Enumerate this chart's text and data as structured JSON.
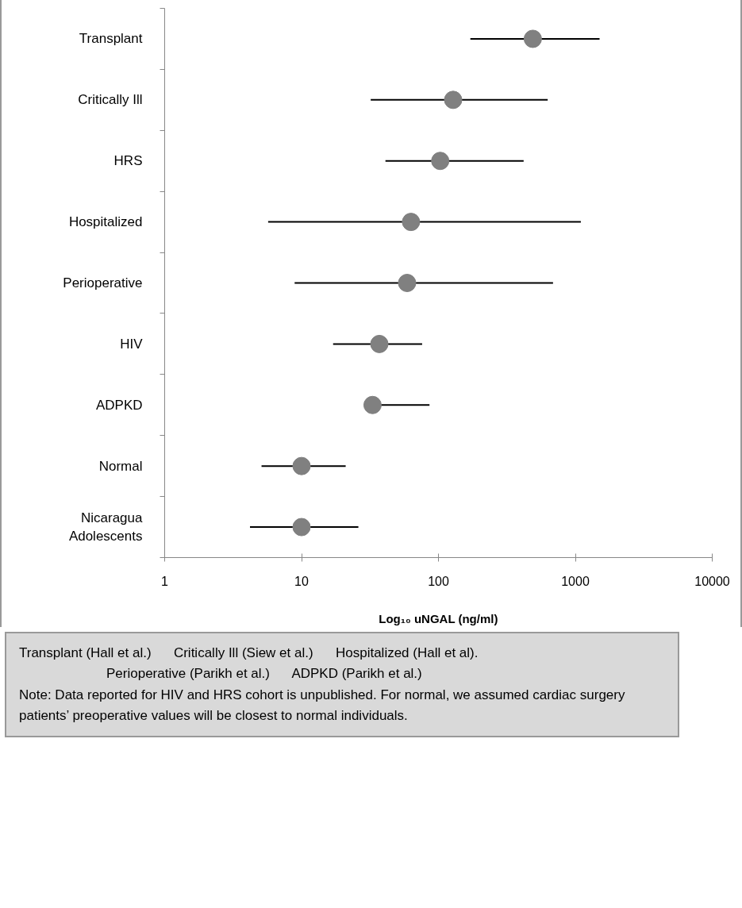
{
  "chart_data": {
    "type": "scatter",
    "orientation": "horizontal",
    "categories": [
      "Transplant",
      "Critically Ill",
      "HRS",
      "Hospitalized",
      "Perioperative",
      "HIV",
      "ADPKD",
      "Normal",
      "Nicaragua Adolescents"
    ],
    "series": [
      {
        "color": "#808080",
        "values": [
          489,
          128,
          103,
          63,
          59,
          37,
          33,
          10,
          10
        ],
        "errors": [
          [
            171,
            1503
          ],
          [
            32,
            628
          ],
          [
            41,
            419
          ],
          [
            5.7,
            1097
          ],
          [
            8.9,
            687
          ],
          [
            17,
            76
          ],
          [
            33,
            86
          ],
          [
            5.1,
            21
          ],
          [
            4.2,
            26
          ]
        ]
      }
    ],
    "xlim": [
      1,
      10000
    ],
    "xticks": [
      1,
      10,
      100,
      1000,
      10000
    ],
    "log": "x",
    "xlabel": "Log₁₀ uNGAL (ng/ml)",
    "grid": false,
    "marker": "circle",
    "annotations": [
      "Transplant (Hall et al.)      Critically Ill (Siew et al.)      Hospitalized (Hall et al).",
      "Perioperative (Parikh et al.)      ADPKD (Parikh et al.)",
      "Note: Data reported for HIV and HRS cohort is unpublished. For normal, we assumed cardiac surgery patients’ preoperative values will be closest to normal individuals."
    ]
  }
}
